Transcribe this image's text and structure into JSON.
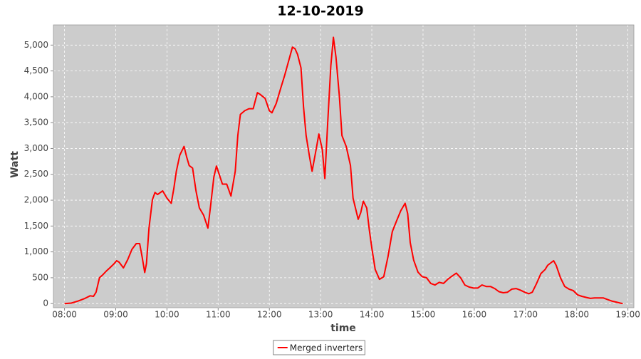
{
  "chart_data": {
    "type": "line",
    "title": "12-10-2019",
    "x_label": "time",
    "y_label": "Watt",
    "x": [
      "08:00",
      "08:08",
      "08:16",
      "08:24",
      "08:30",
      "08:34",
      "08:37",
      "08:41",
      "08:45",
      "08:49",
      "08:53",
      "08:58",
      "09:01",
      "09:04",
      "09:09",
      "09:14",
      "09:19",
      "09:24",
      "09:28",
      "09:31",
      "09:34",
      "09:36",
      "09:39",
      "09:43",
      "09:46",
      "09:49",
      "09:55",
      "10:00",
      "10:05",
      "10:08",
      "10:11",
      "10:15",
      "10:20",
      "10:23",
      "10:26",
      "10:30",
      "10:34",
      "10:38",
      "10:43",
      "10:48",
      "10:51",
      "10:55",
      "10:58",
      "11:01",
      "11:05",
      "11:10",
      "11:15",
      "11:20",
      "11:23",
      "11:26",
      "11:31",
      "11:36",
      "11:41",
      "11:46",
      "11:49",
      "11:55",
      "12:00",
      "12:03",
      "12:08",
      "12:13",
      "12:18",
      "12:22",
      "12:27",
      "12:30",
      "12:33",
      "12:37",
      "12:40",
      "12:43",
      "12:47",
      "12:50",
      "12:55",
      "12:58",
      "13:02",
      "13:05",
      "13:08",
      "13:12",
      "13:15",
      "13:18",
      "13:22",
      "13:25",
      "13:30",
      "13:35",
      "13:38",
      "13:44",
      "13:47",
      "13:50",
      "13:54",
      "13:57",
      "14:00",
      "14:04",
      "14:09",
      "14:14",
      "14:19",
      "14:24",
      "14:29",
      "14:34",
      "14:39",
      "14:42",
      "14:45",
      "14:49",
      "14:54",
      "14:59",
      "15:04",
      "15:09",
      "15:14",
      "15:19",
      "15:24",
      "15:29",
      "15:33",
      "15:39",
      "15:44",
      "15:49",
      "15:54",
      "15:59",
      "16:04",
      "16:09",
      "16:14",
      "16:19",
      "16:24",
      "16:29",
      "16:34",
      "16:39",
      "16:44",
      "16:49",
      "16:54",
      "16:59",
      "17:04",
      "17:08",
      "17:13",
      "17:18",
      "17:23",
      "17:26",
      "17:33",
      "17:36",
      "17:41",
      "17:46",
      "17:51",
      "17:56",
      "18:01",
      "18:06",
      "18:11",
      "18:16",
      "18:21",
      "18:26",
      "18:31",
      "18:36",
      "18:41",
      "18:46",
      "18:51",
      "18:54"
    ],
    "series": [
      {
        "name": "Merged inverters",
        "color": "#ff0000",
        "values": [
          0,
          10,
          50,
          100,
          150,
          140,
          220,
          500,
          560,
          630,
          690,
          770,
          830,
          800,
          690,
          850,
          1050,
          1160,
          1160,
          900,
          600,
          770,
          1460,
          2010,
          2150,
          2110,
          2180,
          2040,
          1940,
          2220,
          2560,
          2870,
          3040,
          2840,
          2670,
          2620,
          2180,
          1850,
          1710,
          1460,
          1870,
          2450,
          2660,
          2510,
          2310,
          2310,
          2080,
          2560,
          3250,
          3660,
          3730,
          3770,
          3770,
          4080,
          4050,
          3970,
          3730,
          3690,
          3870,
          4150,
          4420,
          4660,
          4960,
          4930,
          4820,
          4560,
          3800,
          3250,
          2840,
          2560,
          3000,
          3280,
          2980,
          2420,
          3390,
          4600,
          5150,
          4770,
          4010,
          3250,
          3040,
          2670,
          2040,
          1630,
          1760,
          1980,
          1850,
          1430,
          1070,
          660,
          470,
          520,
          910,
          1390,
          1600,
          1800,
          1940,
          1740,
          1180,
          840,
          610,
          520,
          500,
          390,
          360,
          410,
          390,
          470,
          520,
          590,
          500,
          360,
          320,
          300,
          300,
          360,
          330,
          330,
          290,
          230,
          210,
          220,
          280,
          290,
          260,
          220,
          190,
          220,
          390,
          580,
          660,
          740,
          830,
          740,
          500,
          330,
          280,
          250,
          170,
          140,
          120,
          100,
          110,
          110,
          110,
          80,
          50,
          30,
          10,
          0
        ]
      }
    ],
    "xlim": [
      "07:47",
      "19:07"
    ],
    "xticks": [
      "08:00",
      "09:00",
      "10:00",
      "11:00",
      "12:00",
      "13:00",
      "14:00",
      "15:00",
      "16:00",
      "17:00",
      "18:00",
      "19:00"
    ],
    "ylim": [
      -80,
      5390
    ],
    "yticks": [
      0,
      500,
      {
        "value": 1000,
        "label": "1,000"
      },
      {
        "value": 1500,
        "label": "1,500"
      },
      {
        "value": 2000,
        "label": "2,000"
      },
      {
        "value": 2500,
        "label": "2,500"
      },
      {
        "value": 3000,
        "label": "3,000"
      },
      {
        "value": 3500,
        "label": "3,500"
      },
      {
        "value": 4000,
        "label": "4,000"
      },
      {
        "value": 4500,
        "label": "4,500"
      },
      {
        "value": 5000,
        "label": "5,000"
      }
    ],
    "grid": true,
    "legend": "bottom",
    "background": "#cccccc"
  }
}
